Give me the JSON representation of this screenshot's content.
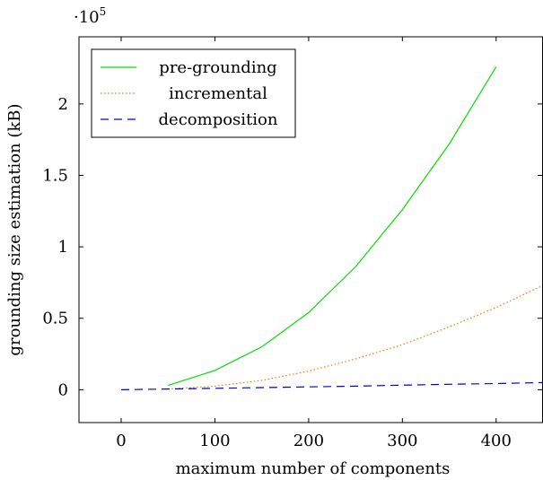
{
  "chart_data": {
    "type": "line",
    "title": "",
    "xlabel": "maximum number of components",
    "ylabel": "grounding size estimation (kB)",
    "y_multiplier_label": "·10",
    "y_multiplier_exp": "5",
    "xlim": [
      -45,
      450
    ],
    "ylim": [
      -23000,
      247000
    ],
    "x_ticks": [
      0,
      100,
      200,
      300,
      400
    ],
    "x_tick_labels": [
      "0",
      "100",
      "200",
      "300",
      "400"
    ],
    "y_ticks": [
      0,
      50000,
      100000,
      150000,
      200000
    ],
    "y_tick_labels": [
      "0",
      "0.5",
      "1",
      "1.5",
      "2"
    ],
    "grid": false,
    "legend_position": "top-left",
    "series": [
      {
        "name": "pre-grounding",
        "color": "#00e000",
        "dash": "solid",
        "x": [
          50,
          100,
          150,
          200,
          250,
          300,
          350,
          400
        ],
        "y": [
          3000,
          13500,
          30000,
          54000,
          86000,
          126000,
          172000,
          226000
        ]
      },
      {
        "name": "incremental",
        "color": "#f07800",
        "dash": "dotted",
        "x": [
          50,
          100,
          150,
          200,
          250,
          300,
          350,
          400,
          450
        ],
        "y": [
          500,
          2500,
          6500,
          13000,
          21500,
          31500,
          44000,
          57500,
          73000
        ]
      },
      {
        "name": "decomposition",
        "color": "#0000e0",
        "dash": "dashed",
        "x": [
          0,
          50,
          100,
          150,
          200,
          250,
          300,
          350,
          400,
          450
        ],
        "y": [
          0,
          500,
          1000,
          1500,
          2000,
          2500,
          3200,
          3800,
          4300,
          5000
        ]
      }
    ]
  }
}
